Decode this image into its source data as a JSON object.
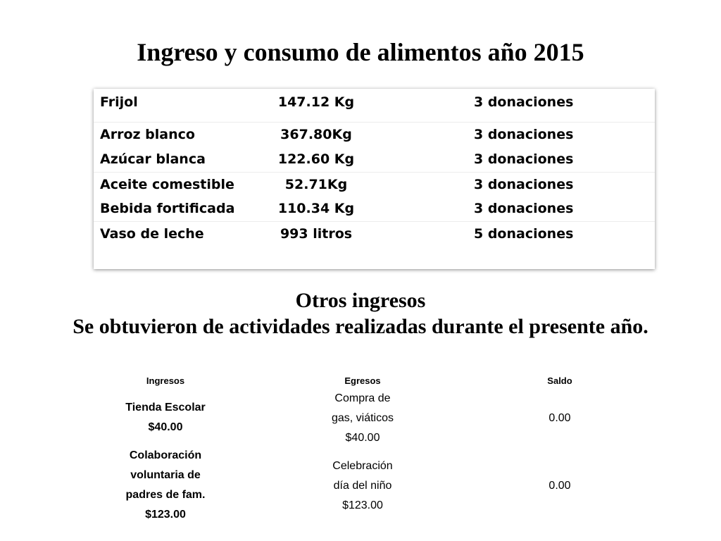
{
  "title": "Ingreso y consumo de alimentos año 2015",
  "food_items": [
    {
      "name": "Frijol",
      "quantity": "147.12 Kg",
      "donations": "3 donaciones"
    },
    {
      "name": "Arroz blanco",
      "quantity": "367.80Kg",
      "donations": "3 donaciones"
    },
    {
      "name": "Azúcar blanca",
      "quantity": "122.60 Kg",
      "donations": "3 donaciones"
    },
    {
      "name": "Aceite comestible",
      "quantity": "52.71Kg",
      "donations": "3 donaciones"
    },
    {
      "name": "Bebida fortificada",
      "quantity": "110.34 Kg",
      "donations": "3 donaciones"
    },
    {
      "name": "Vaso de leche",
      "quantity": "993 litros",
      "donations": "5 donaciones"
    }
  ],
  "otros": {
    "heading": "Otros ingresos",
    "subtitle": "Se obtuvieron de actividades realizadas durante el presente año."
  },
  "finance": {
    "headers": {
      "ingresos": "Ingresos",
      "egresos": "Egresos",
      "saldo": "Saldo"
    },
    "rows": [
      {
        "ingresos": "Tienda Escolar\n$40.00",
        "egresos": "Compra de\ngas, viáticos\n$40.00",
        "saldo": "0.00"
      },
      {
        "ingresos": "Colaboración\nvoluntaria de\npadres de fam.\n$123.00",
        "egresos": "Celebración\ndía del niño\n$123.00",
        "saldo": "0.00"
      }
    ]
  }
}
